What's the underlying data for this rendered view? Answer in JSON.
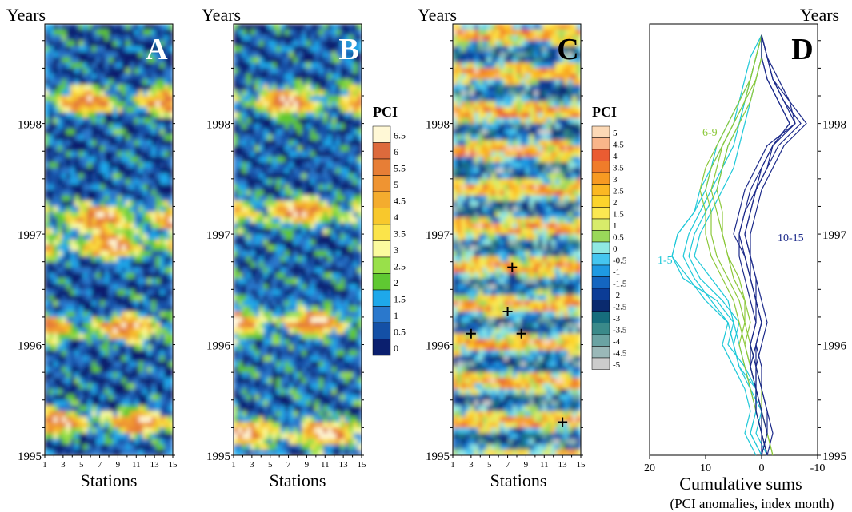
{
  "figure": {
    "panels": [
      {
        "letter": "A",
        "y_title": "Years",
        "x_title": "Stations"
      },
      {
        "letter": "B",
        "y_title": "Years",
        "x_title": "Stations"
      },
      {
        "letter": "C",
        "y_title": "Years",
        "x_title": "Stations"
      },
      {
        "letter": "D",
        "y_title": "Years",
        "x_title": "Cumulative sums",
        "x_subtitle": "(PCI anomalies, index month)"
      }
    ],
    "colorbar_ab": {
      "title": "PCI",
      "labels": [
        "6.5",
        "6",
        "5.5",
        "5",
        "4.5",
        "4",
        "3.5",
        "3",
        "2.5",
        "2",
        "1.5",
        "1",
        "0.5",
        "0"
      ],
      "colors": [
        "#fff8d6",
        "#dd6a3c",
        "#e77e36",
        "#ef9432",
        "#f4ac2e",
        "#f8c82c",
        "#fbe44a",
        "#fbfb9e",
        "#99e04a",
        "#5fc832",
        "#1ea8ea",
        "#2a78cc",
        "#1450a6",
        "#0b1f6e"
      ]
    },
    "colorbar_c": {
      "title": "PCI",
      "labels": [
        "5",
        "4.5",
        "4",
        "3.5",
        "3",
        "2.5",
        "2",
        "1.5",
        "1",
        "0.5",
        "0",
        "-0.5",
        "-1",
        "-1.5",
        "-2",
        "-2.5",
        "-3",
        "-3.5",
        "-4",
        "-4.5",
        "-5"
      ],
      "colors": [
        "#fcd9b6",
        "#f9b58a",
        "#ea5c32",
        "#f07c2a",
        "#f79a22",
        "#fbb823",
        "#fcd42c",
        "#fbe851",
        "#d8ec6a",
        "#9ad85a",
        "#8fe8e2",
        "#45c6f0",
        "#1e9ae2",
        "#1466c0",
        "#0b3c96",
        "#0a2a6e",
        "#166d7d",
        "#3a8a8a",
        "#6aa3a3",
        "#9ab8b8",
        "#cccccc"
      ]
    },
    "group_labels": [
      "6-9",
      "10-15",
      "1-5"
    ],
    "group_colors": {
      "1-5": "#1ec8d8",
      "6-9": "#8cc83a",
      "10-15": "#1c2a8a"
    }
  },
  "chart_data": [
    {
      "type": "heatmap",
      "title": "A",
      "xlabel": "Stations",
      "ylabel": "Years",
      "x_ticks": [
        1,
        3,
        5,
        7,
        9,
        11,
        13,
        15
      ],
      "y_ticks": [
        1995,
        1996,
        1997,
        1998
      ],
      "ylim": [
        1995,
        1998.9
      ],
      "value_range": [
        0,
        6.5
      ],
      "high_pci_bands_years": [
        1995.3,
        1996.15,
        1996.9,
        1997.15,
        1998.2
      ]
    },
    {
      "type": "heatmap",
      "title": "B",
      "xlabel": "Stations",
      "ylabel": "Years",
      "x_ticks": [
        1,
        3,
        5,
        7,
        9,
        11,
        13,
        15
      ],
      "y_ticks": [
        1995,
        1996,
        1997,
        1998
      ],
      "ylim": [
        1995,
        1998.9
      ],
      "value_range": [
        0,
        6.5
      ],
      "high_pci_bands_years": [
        1995.2,
        1996.2,
        1997.2,
        1998.2
      ]
    },
    {
      "type": "heatmap",
      "title": "C",
      "xlabel": "Stations",
      "ylabel": "Years",
      "x_ticks": [
        1,
        3,
        5,
        7,
        9,
        11,
        13,
        15
      ],
      "y_ticks": [
        1995,
        1996,
        1997,
        1998
      ],
      "ylim": [
        1995,
        1998.9
      ],
      "value_range": [
        -5,
        5
      ],
      "markers": [
        [
          3,
          1996.1
        ],
        [
          7,
          1996.3
        ],
        [
          7.5,
          1996.7
        ],
        [
          8.5,
          1996.1
        ],
        [
          13,
          1995.3
        ]
      ]
    },
    {
      "type": "line",
      "title": "D",
      "xlabel": "Cumulative sums",
      "ylabel": "Years",
      "xlim": [
        20,
        -10
      ],
      "x_ticks": [
        20,
        10,
        0,
        -10
      ],
      "y_ticks": [
        1995,
        1996,
        1997,
        1998
      ],
      "ylim": [
        1995,
        1998.9
      ],
      "y_knots": [
        1995.0,
        1995.2,
        1995.4,
        1995.6,
        1995.8,
        1996.0,
        1996.2,
        1996.4,
        1996.6,
        1996.8,
        1997.0,
        1997.2,
        1997.4,
        1997.6,
        1997.8,
        1998.0,
        1998.2,
        1998.4,
        1998.6,
        1998.8
      ],
      "series": [
        {
          "name": "1-5",
          "group": "1-5",
          "values": [
            0,
            2,
            1,
            1,
            3,
            6,
            5,
            8,
            14,
            16,
            15,
            12,
            10,
            9,
            8,
            6,
            4,
            3,
            2,
            0
          ]
        },
        {
          "name": "1-5",
          "group": "1-5",
          "values": [
            -1,
            1,
            0,
            2,
            4,
            5,
            6,
            9,
            12,
            14,
            13,
            11,
            9,
            7,
            6,
            4,
            3,
            2,
            1,
            0
          ]
        },
        {
          "name": "1-5",
          "group": "1-5",
          "values": [
            1,
            3,
            2,
            3,
            5,
            7,
            6,
            10,
            13,
            16,
            15,
            12,
            11,
            9,
            7,
            5,
            4,
            2,
            1,
            0
          ]
        },
        {
          "name": "1-5",
          "group": "1-5",
          "values": [
            0,
            2,
            1,
            1,
            4,
            5,
            4,
            7,
            11,
            13,
            12,
            10,
            8,
            7,
            5,
            4,
            3,
            2,
            1,
            0
          ]
        },
        {
          "name": "1-5",
          "group": "1-5",
          "values": [
            -1,
            0,
            1,
            2,
            3,
            4,
            5,
            6,
            9,
            12,
            11,
            9,
            7,
            5,
            4,
            3,
            2,
            1,
            0,
            0
          ]
        },
        {
          "name": "6-9",
          "group": "6-9",
          "values": [
            -2,
            -1,
            0,
            1,
            2,
            3,
            4,
            5,
            7,
            9,
            10,
            10,
            11,
            10,
            8,
            6,
            4,
            2,
            1,
            0
          ]
        },
        {
          "name": "6-9",
          "group": "6-9",
          "values": [
            -1,
            0,
            1,
            2,
            3,
            4,
            3,
            4,
            6,
            8,
            9,
            9,
            10,
            9,
            7,
            5,
            3,
            2,
            1,
            0
          ]
        },
        {
          "name": "6-9",
          "group": "6-9",
          "values": [
            -2,
            -1,
            0,
            0,
            1,
            2,
            3,
            3,
            5,
            6,
            7,
            8,
            9,
            8,
            7,
            5,
            3,
            1,
            0,
            0
          ]
        },
        {
          "name": "6-9",
          "group": "6-9",
          "values": [
            -1,
            0,
            0,
            1,
            2,
            3,
            2,
            3,
            4,
            6,
            7,
            7,
            8,
            7,
            6,
            4,
            2,
            1,
            0,
            0
          ]
        },
        {
          "name": "10-15",
          "group": "10-15",
          "values": [
            -1,
            0,
            1,
            1,
            2,
            1,
            0,
            1,
            2,
            3,
            5,
            4,
            3,
            1,
            -1,
            -6,
            -5,
            -2,
            -1,
            0
          ]
        },
        {
          "name": "10-15",
          "group": "10-15",
          "values": [
            0,
            -1,
            0,
            1,
            1,
            2,
            1,
            2,
            3,
            4,
            4,
            3,
            2,
            0,
            -2,
            -5,
            -3,
            -1,
            0,
            0
          ]
        },
        {
          "name": "10-15",
          "group": "10-15",
          "values": [
            -1,
            -2,
            -1,
            0,
            1,
            1,
            0,
            1,
            2,
            2,
            3,
            2,
            1,
            -1,
            -3,
            -7,
            -4,
            -2,
            -1,
            0
          ]
        },
        {
          "name": "10-15",
          "group": "10-15",
          "values": [
            0,
            -1,
            -1,
            0,
            0,
            1,
            0,
            1,
            1,
            2,
            2,
            1,
            0,
            -2,
            -4,
            -8,
            -5,
            -3,
            -1,
            0
          ]
        },
        {
          "name": "10-15",
          "group": "10-15",
          "values": [
            -1,
            0,
            0,
            1,
            2,
            2,
            1,
            1,
            2,
            3,
            4,
            3,
            1,
            0,
            -2,
            -5,
            -3,
            -1,
            0,
            0
          ]
        },
        {
          "name": "10-15",
          "group": "10-15",
          "values": [
            0,
            0,
            1,
            1,
            1,
            0,
            -1,
            0,
            1,
            2,
            3,
            2,
            1,
            -1,
            -2,
            -6,
            -4,
            -2,
            -1,
            0
          ]
        }
      ]
    }
  ]
}
